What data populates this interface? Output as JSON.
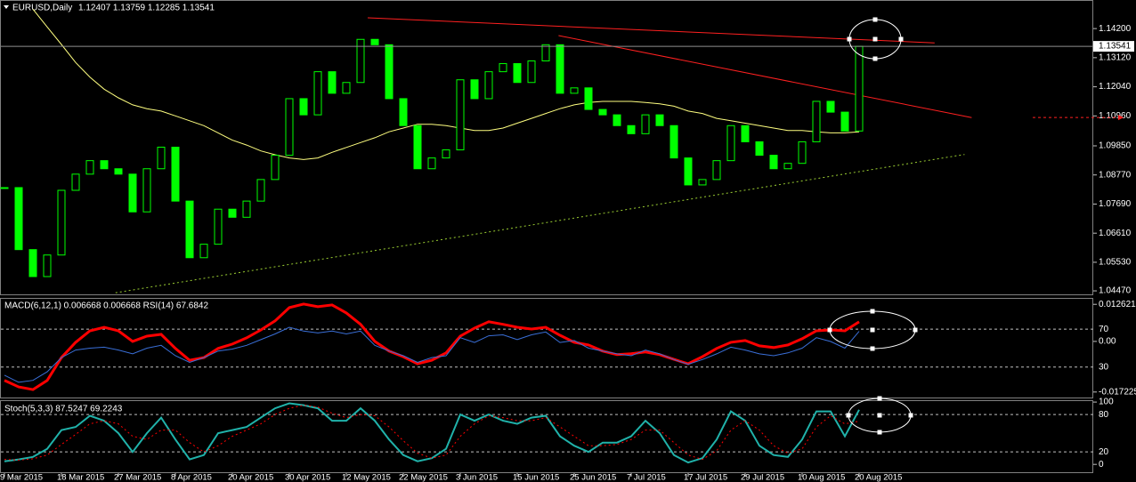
{
  "chart_data": [
    {
      "type": "candlestick",
      "title": "EURUSD,Daily",
      "subtitle": "1.12407 1.13759 1.12285 1.13541",
      "categories": [
        "9 Mar 2015",
        null,
        null,
        null,
        "18 Mar 2015",
        null,
        null,
        null,
        "27 Mar 2015",
        null,
        null,
        null,
        "8 Apr 2015",
        null,
        null,
        null,
        "20 Apr 2015",
        null,
        null,
        null,
        "30 Apr 2015",
        null,
        null,
        null,
        "12 May 2015",
        null,
        null,
        null,
        "22 May 2015",
        null,
        null,
        null,
        "3 Jun 2015",
        null,
        null,
        null,
        "15 Jun 2015",
        null,
        null,
        null,
        "25 Jun 2015",
        null,
        null,
        null,
        "7 Jul 2015",
        null,
        null,
        null,
        "17 Jul 2015",
        null,
        null,
        null,
        "29 Jul 2015",
        null,
        null,
        null,
        "10 Aug 2015",
        null,
        null,
        null,
        "20 Aug 2015"
      ],
      "values": [
        1.083,
        1.06,
        1.05,
        1.058,
        1.082,
        1.088,
        1.093,
        1.09,
        1.088,
        1.074,
        1.09,
        1.098,
        1.078,
        1.057,
        1.062,
        1.075,
        1.072,
        1.078,
        1.086,
        1.095,
        1.116,
        1.11,
        1.126,
        1.118,
        1.122,
        1.138,
        1.136,
        1.116,
        1.106,
        1.09,
        1.094,
        1.097,
        1.123,
        1.116,
        1.126,
        1.129,
        1.122,
        1.13,
        1.136,
        1.118,
        1.12,
        1.112,
        1.11,
        1.106,
        1.103,
        1.11,
        1.106,
        1.094,
        1.084,
        1.086,
        1.093,
        1.106,
        1.1,
        1.095,
        1.09,
        1.092,
        1.1,
        1.115,
        1.111,
        1.104,
        1.13541
      ],
      "color": "#00ff00",
      "series": [
        {
          "color": "#ffff80",
          "values": [
            null,
            null,
            1.1492,
            1.1426,
            1.1361,
            1.1294,
            1.124,
            1.1195,
            1.1163,
            1.1137,
            1.1123,
            1.1114,
            1.1096,
            1.1078,
            1.106,
            1.1033,
            1.1006,
            1.0988,
            1.0966,
            1.0952,
            1.094,
            1.0934,
            1.094,
            1.0961,
            1.0979,
            1.0997,
            1.1015,
            1.1037,
            1.1051,
            1.1065,
            1.1065,
            1.106,
            1.1051,
            1.1042,
            1.1042,
            1.1051,
            1.1069,
            1.1087,
            1.1105,
            1.1123,
            1.1137,
            1.1146,
            1.115,
            1.115,
            1.115,
            1.1146,
            1.1141,
            1.1132,
            1.1114,
            1.1105,
            1.1087,
            1.1078,
            1.1069,
            1.106,
            1.1051,
            1.1042,
            1.1042,
            1.1037,
            1.1033,
            1.1033,
            1.1037
          ]
        }
      ],
      "lines": [
        {
          "color": "#ff2020",
          "x": [
            25.5,
            65.3
          ],
          "values": [
            1.146,
            1.1367
          ]
        },
        {
          "color": "#ff2020",
          "x": [
            38.9,
            67.9
          ],
          "values": [
            1.1394,
            1.109
          ]
        },
        {
          "color": "#9acd32",
          "x": [
            7.8,
            67.4
          ],
          "values": [
            1.044,
            1.0953
          ],
          "dash": true
        }
      ],
      "level": 1.109,
      "level_color": "#ff2020",
      "current_price": 1.13541,
      "ylim": [
        1.0434,
        1.1526
      ],
      "yticks": [
        {
          "value": 1.142,
          "label": "1.14200"
        },
        {
          "value": 1.1312,
          "label": "1.13120"
        },
        {
          "value": 1.1204,
          "label": "1.12040"
        },
        {
          "value": 1.1096,
          "label": "1.10960"
        },
        {
          "value": 1.0985,
          "label": "1.09850"
        },
        {
          "value": 1.0877,
          "label": "1.08770"
        },
        {
          "value": 1.0769,
          "label": "1.07690"
        },
        {
          "value": 1.0661,
          "label": "1.06610"
        },
        {
          "value": 1.0553,
          "label": "1.05530"
        },
        {
          "value": 1.0447,
          "label": "1.04470"
        }
      ],
      "grid": false
    },
    {
      "type": "line",
      "title": "MACD(6,12,1) 0.006668 0.006668 RSI(14) 67.6842",
      "series": [
        {
          "color": "#ff0000",
          "width": 3,
          "values": [
            -0.0133,
            -0.0155,
            -0.0164,
            -0.0133,
            -0.0055,
            -0.0003,
            0.0036,
            0.0048,
            0.0036,
            0.0,
            0.0018,
            0.0024,
            -0.0024,
            -0.0064,
            -0.0055,
            -0.0024,
            -0.0009,
            0.0012,
            0.0039,
            0.007,
            0.0115,
            0.0127,
            0.0118,
            0.0124,
            0.0097,
            0.0058,
            0.0,
            -0.0033,
            -0.0052,
            -0.0076,
            -0.0064,
            -0.0039,
            0.0018,
            0.0045,
            0.0067,
            0.0058,
            0.0048,
            0.0042,
            0.0048,
            0.0021,
            -0.0003,
            -0.0012,
            -0.0033,
            -0.0045,
            -0.0042,
            -0.0036,
            -0.0045,
            -0.0061,
            -0.0076,
            -0.0052,
            -0.0024,
            -0.0003,
            0.0003,
            -0.0015,
            -0.0021,
            -0.0012,
            0.0009,
            0.0036,
            0.0039,
            0.0036,
            0.006668
          ]
        },
        {
          "color": "#3a6fd8",
          "width": 1,
          "axis": "y2",
          "values": [
            21.5,
            14,
            16,
            25,
            40,
            48,
            50,
            51,
            48,
            44,
            50,
            53,
            42,
            35,
            40,
            47,
            49,
            53,
            59,
            65,
            72,
            68,
            66,
            68,
            65,
            68,
            53,
            47,
            42,
            35,
            40,
            42,
            61,
            56,
            63,
            64,
            59,
            64,
            67,
            56,
            58,
            50,
            47,
            44,
            42,
            48,
            44,
            38,
            33,
            38,
            44,
            51,
            48,
            44,
            42,
            45,
            50,
            61,
            57,
            50,
            67.6842
          ]
        }
      ],
      "ylim": [
        -0.0194,
        0.0145
      ],
      "yticks": [
        0.012621,
        {
          "value": 0,
          "label": "0.00"
        },
        -0.017225
      ],
      "y2lim": [
        -3,
        102
      ],
      "levels": [
        70,
        30
      ],
      "levels_axis": "y2"
    },
    {
      "type": "line",
      "title": "Stoch(5,3,3) 87.5247 69.2243",
      "series": [
        {
          "color": "#20b2aa",
          "width": 2,
          "values": [
            5,
            8,
            12,
            25,
            55,
            60,
            78,
            70,
            50,
            20,
            50,
            75,
            40,
            8,
            15,
            50,
            55,
            60,
            75,
            90,
            98,
            95,
            90,
            70,
            70,
            90,
            70,
            40,
            15,
            5,
            10,
            25,
            80,
            70,
            80,
            70,
            65,
            75,
            78,
            45,
            30,
            20,
            35,
            35,
            45,
            70,
            50,
            15,
            3,
            10,
            40,
            85,
            70,
            30,
            15,
            12,
            40,
            85,
            85,
            45,
            87.5247
          ]
        },
        {
          "color": "#ff0000",
          "width": 1,
          "dash": true,
          "values": [
            8,
            7,
            9,
            15,
            32,
            48,
            65,
            70,
            65,
            45,
            40,
            55,
            55,
            35,
            20,
            30,
            45,
            55,
            65,
            80,
            90,
            95,
            92,
            82,
            75,
            80,
            78,
            60,
            38,
            18,
            10,
            15,
            45,
            65,
            78,
            75,
            70,
            70,
            75,
            60,
            45,
            30,
            30,
            32,
            40,
            55,
            55,
            35,
            15,
            8,
            22,
            55,
            70,
            55,
            30,
            18,
            25,
            60,
            78,
            65,
            69.2243
          ]
        }
      ],
      "ylim": [
        -14,
        103
      ],
      "yticks": [
        100,
        0
      ],
      "levels": [
        80,
        20
      ],
      "levels_axis": "y"
    }
  ]
}
